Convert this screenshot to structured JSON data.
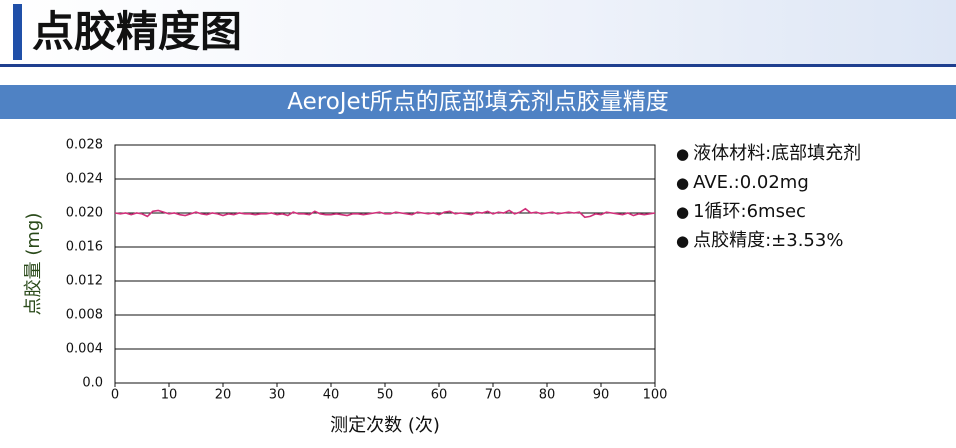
{
  "header": {
    "title": "点胶精度图"
  },
  "subtitle": "AeroJet所点的底部填充剂点胶量精度",
  "notes": [
    "液体材料:底部填充剂",
    "AVE.:0.02mg",
    "1循环:6msec",
    "点胶精度:±3.53%"
  ],
  "chart_data": {
    "type": "line",
    "ylabel": "点胶量 (mg)",
    "xlabel": "测定次数 (次)",
    "xlim": [
      0,
      100
    ],
    "xticks": [
      0,
      10,
      20,
      30,
      40,
      50,
      60,
      70,
      80,
      90,
      100
    ],
    "ylim": [
      0,
      0.028
    ],
    "yticks": [
      {
        "value": 0,
        "label": "0.0"
      },
      0.004,
      0.008,
      0.012,
      0.016,
      {
        "value": 0.02,
        "label": "0.020"
      },
      0.024,
      0.028
    ],
    "grid": true,
    "x": [
      0,
      1,
      2,
      3,
      4,
      5,
      6,
      7,
      8,
      9,
      10,
      11,
      12,
      13,
      14,
      15,
      16,
      17,
      18,
      19,
      20,
      21,
      22,
      23,
      24,
      25,
      26,
      27,
      28,
      29,
      30,
      31,
      32,
      33,
      34,
      35,
      36,
      37,
      38,
      39,
      40,
      41,
      42,
      43,
      44,
      45,
      46,
      47,
      48,
      49,
      50,
      51,
      52,
      53,
      54,
      55,
      56,
      57,
      58,
      59,
      60,
      61,
      62,
      63,
      64,
      65,
      66,
      67,
      68,
      69,
      70,
      71,
      72,
      73,
      74,
      75,
      76,
      77,
      78,
      79,
      80,
      81,
      82,
      83,
      84,
      85,
      86,
      87,
      88,
      89,
      90,
      91,
      92,
      93,
      94,
      95,
      96,
      97,
      98,
      99,
      100
    ],
    "series": [
      {
        "color": "#d0307a",
        "values": [
          0.02,
          0.0199,
          0.02,
          0.0198,
          0.02,
          0.0199,
          0.0196,
          0.0202,
          0.0203,
          0.0201,
          0.0199,
          0.02,
          0.0198,
          0.0197,
          0.0199,
          0.0201,
          0.0199,
          0.0198,
          0.02,
          0.0199,
          0.0197,
          0.0199,
          0.0198,
          0.02,
          0.0199,
          0.0199,
          0.0198,
          0.0199,
          0.0199,
          0.02,
          0.0198,
          0.0199,
          0.0197,
          0.0201,
          0.0199,
          0.0199,
          0.0198,
          0.0202,
          0.0199,
          0.0198,
          0.0198,
          0.0199,
          0.0198,
          0.0197,
          0.0199,
          0.0199,
          0.0198,
          0.0199,
          0.02,
          0.0201,
          0.0199,
          0.0199,
          0.0201,
          0.02,
          0.0199,
          0.0198,
          0.0201,
          0.02,
          0.0199,
          0.02,
          0.0198,
          0.0201,
          0.0202,
          0.0199,
          0.02,
          0.0199,
          0.0198,
          0.0201,
          0.02,
          0.0202,
          0.0199,
          0.0201,
          0.02,
          0.0203,
          0.0199,
          0.0201,
          0.0205,
          0.02,
          0.0201,
          0.0199,
          0.02,
          0.0201,
          0.0199,
          0.02,
          0.0201,
          0.02,
          0.0201,
          0.0195,
          0.0196,
          0.0199,
          0.0198,
          0.0201,
          0.02,
          0.0199,
          0.0198,
          0.02,
          0.0197,
          0.0199,
          0.0198,
          0.0199,
          0.02
        ]
      }
    ]
  }
}
